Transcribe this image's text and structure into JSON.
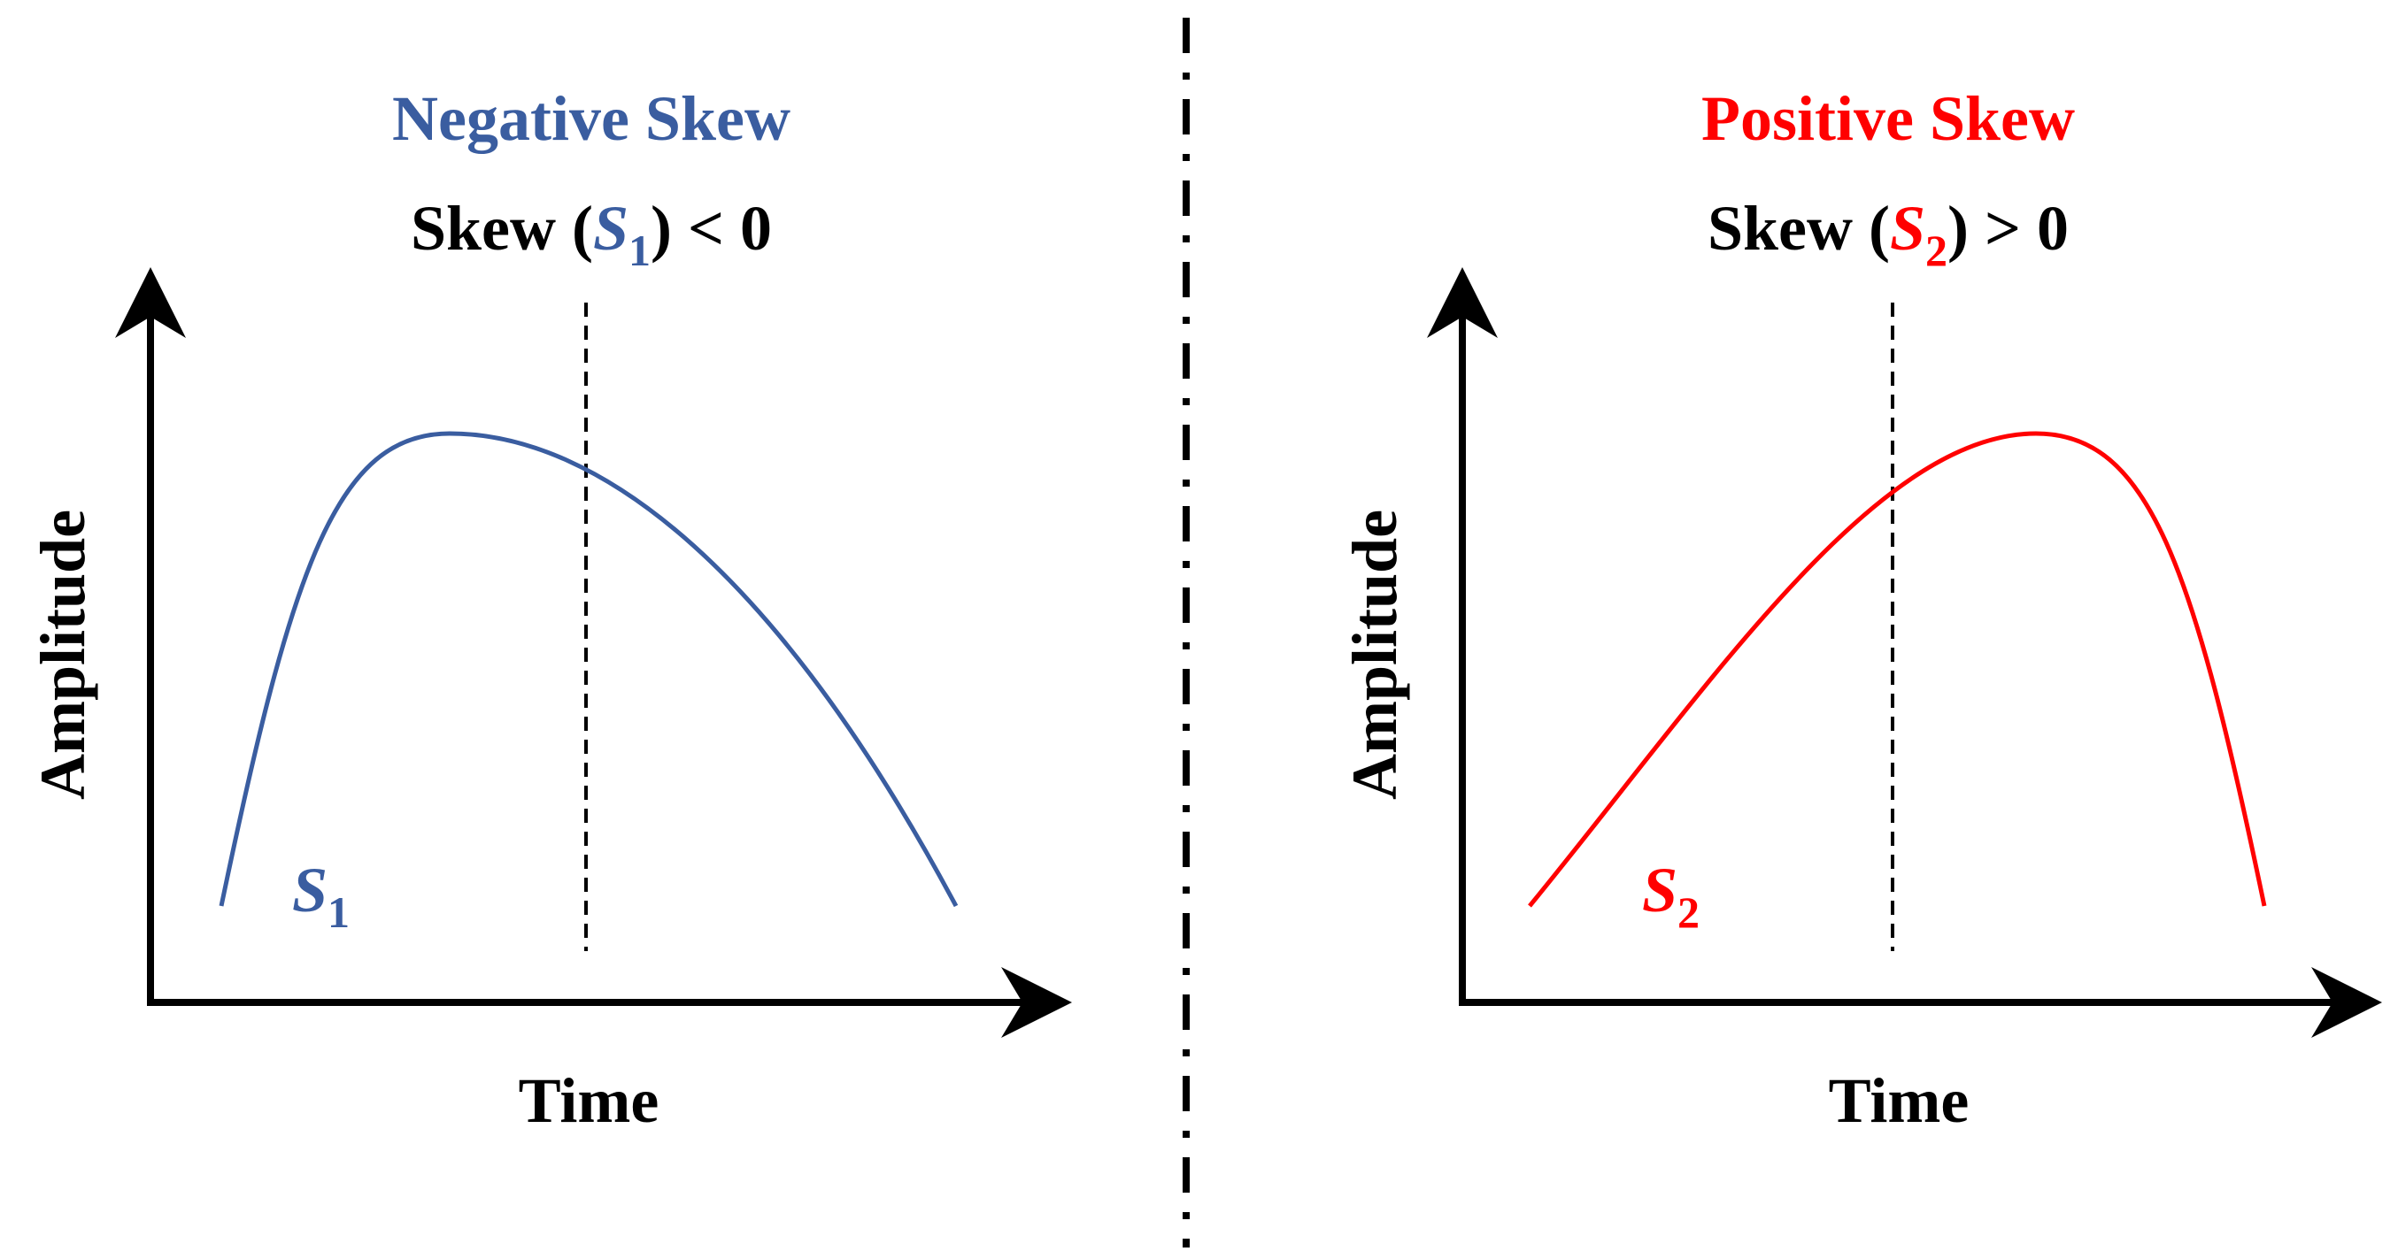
{
  "colors": {
    "negative": "#3a5da0",
    "positive": "#ff0000",
    "axis": "#000000",
    "divider": "#000000"
  },
  "panels": [
    {
      "id": "negative",
      "title": "Negative Skew",
      "condition": {
        "prefix": "Skew (",
        "symbol": "S",
        "subscript": "1",
        "suffix": ") < 0"
      },
      "curve_label": {
        "symbol": "S",
        "subscript": "1"
      },
      "xlabel": "Time",
      "ylabel": "Amplitude"
    },
    {
      "id": "positive",
      "title": "Positive Skew",
      "condition": {
        "prefix": "Skew (",
        "symbol": "S",
        "subscript": "2",
        "suffix": ") > 0"
      },
      "curve_label": {
        "symbol": "S",
        "subscript": "2"
      },
      "xlabel": "Time",
      "ylabel": "Amplitude"
    }
  ]
}
